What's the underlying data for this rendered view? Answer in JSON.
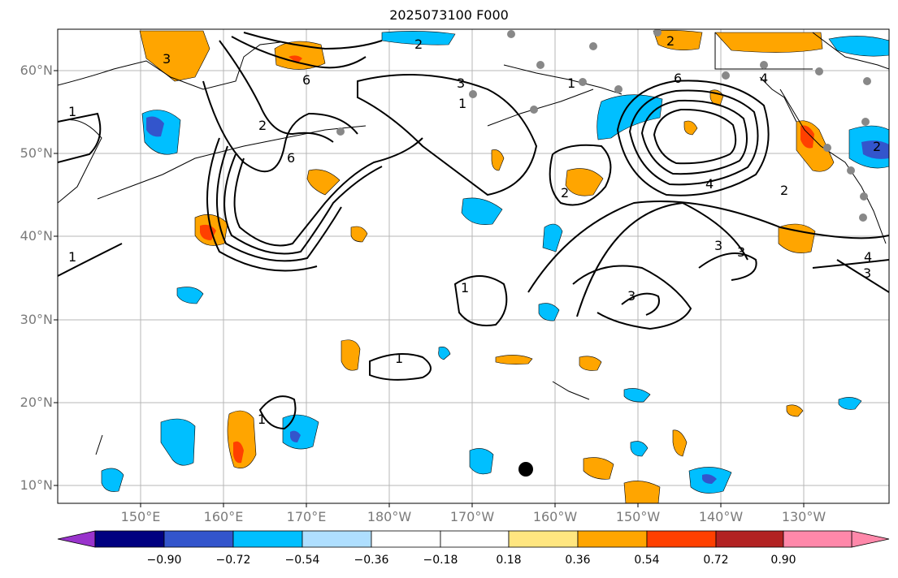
{
  "title": "2025073100 F000",
  "lat_labels": [
    "60°N",
    "50°N",
    "40°N",
    "30°N",
    "20°N",
    "10°N"
  ],
  "lon_labels": [
    "150°E",
    "160°E",
    "170°E",
    "180°W",
    "170°W",
    "160°W",
    "150°W",
    "140°W",
    "130°W"
  ],
  "colorbar": {
    "ticks": [
      "−0.90",
      "−0.72",
      "−0.54",
      "−0.36",
      "−0.18",
      "0.18",
      "0.36",
      "0.54",
      "0.72",
      "0.90"
    ],
    "colors": {
      "under": "#9933cc",
      "b1": "#000080",
      "b2": "#3355cc",
      "b3": "#00bfff",
      "b4": "#afdfff",
      "b5": "#ffffff",
      "b6": "#ffe680",
      "b7": "#ffa500",
      "b8": "#ff4000",
      "b9": "#b22222",
      "over": "#ff88aa"
    }
  },
  "contour_labels": [
    "1",
    "2",
    "3",
    "4",
    "6",
    "1",
    "2",
    "3",
    "1",
    "1",
    "1",
    "1",
    "3",
    "3",
    "3",
    "6",
    "4",
    "2",
    "2",
    "3",
    "4",
    "1",
    "6",
    "2",
    "2"
  ]
}
